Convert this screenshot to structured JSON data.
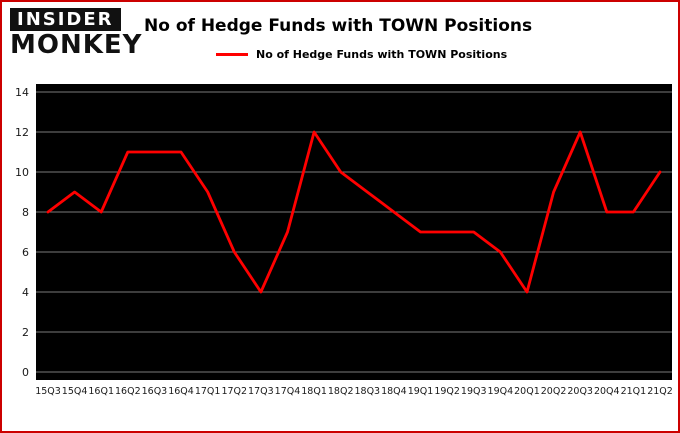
{
  "logo": {
    "line1": "INSIDER",
    "line2": "MONKEY"
  },
  "header": {
    "title": "No of Hedge Funds with TOWN Positions"
  },
  "legend": {
    "label": "No of Hedge Funds with TOWN Positions"
  },
  "colors": {
    "line": "#ff0000",
    "plot_background": "#000000",
    "gridline": "#7a7a7a",
    "frame_border": "#cc0000",
    "tick_text": "#1a1a1a"
  },
  "chart_data": {
    "type": "line",
    "title": "No of Hedge Funds with TOWN Positions",
    "xlabel": "",
    "ylabel": "",
    "categories": [
      "15Q3",
      "15Q4",
      "16Q1",
      "16Q2",
      "16Q3",
      "16Q4",
      "17Q1",
      "17Q2",
      "17Q3",
      "17Q4",
      "18Q1",
      "18Q2",
      "18Q3",
      "18Q4",
      "19Q1",
      "19Q2",
      "19Q3",
      "19Q4",
      "20Q1",
      "20Q2",
      "20Q3",
      "20Q4",
      "21Q1",
      "21Q2"
    ],
    "series": [
      {
        "name": "No of Hedge Funds with TOWN Positions",
        "values": [
          8,
          9,
          8,
          11,
          11,
          11,
          9,
          6,
          4,
          7,
          12,
          10,
          9,
          8,
          7,
          7,
          7,
          6,
          4,
          9,
          12,
          8,
          8,
          10
        ]
      }
    ],
    "ylim": [
      0,
      14
    ],
    "yticks": [
      0,
      2,
      4,
      6,
      8,
      10,
      12,
      14
    ],
    "grid": true,
    "legend_position": "top"
  }
}
